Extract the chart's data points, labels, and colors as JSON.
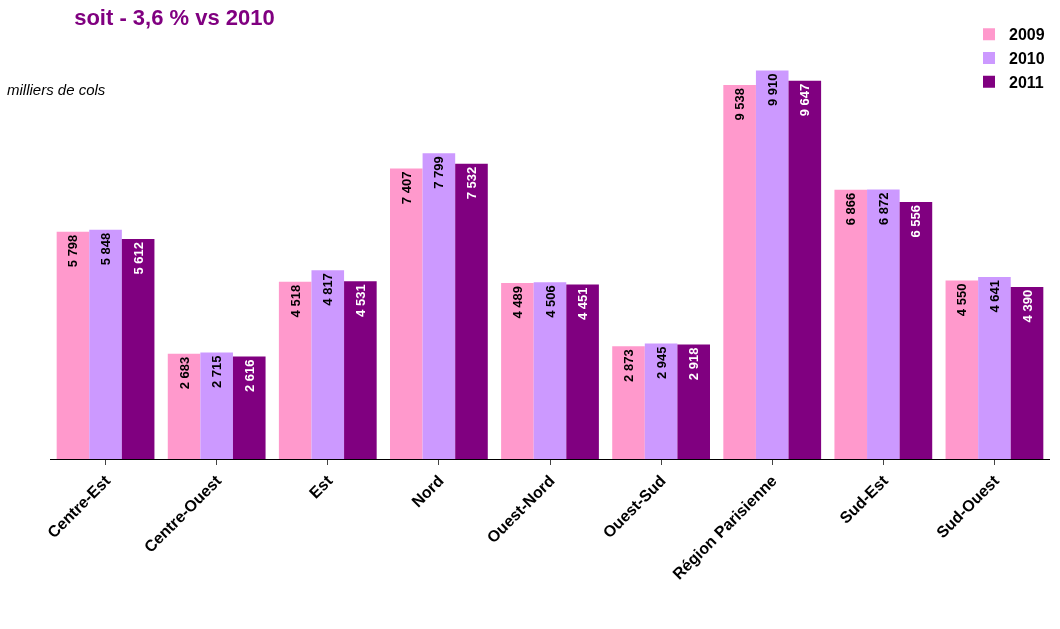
{
  "chart_data": {
    "type": "bar",
    "title": "soit - 3,6 % vs 2010",
    "ylabel": "milliers de cols",
    "categories": [
      "Centre-Est",
      "Centre-Ouest",
      "Est",
      "Nord",
      "Ouest-Nord",
      "Ouest-Sud",
      "Région Parisienne",
      "Sud-Est",
      "Sud-Ouest"
    ],
    "series": [
      {
        "name": "2009",
        "color": "#ff99cc",
        "values": [
          5798,
          2683,
          4518,
          7407,
          4489,
          2873,
          9538,
          6866,
          4550
        ],
        "value_labels": [
          "5 798",
          "2 683",
          "4 518",
          "7 407",
          "4 489",
          "2 873",
          "9 538",
          "6 866",
          "4 550"
        ]
      },
      {
        "name": "2010",
        "color": "#cc99ff",
        "values": [
          5848,
          2715,
          4817,
          7799,
          4506,
          2945,
          9910,
          6872,
          4641
        ],
        "value_labels": [
          "5 848",
          "2 715",
          "4 817",
          "7 799",
          "4 506",
          "2 945",
          "9 910",
          "6 872",
          "4 641"
        ]
      },
      {
        "name": "2011",
        "color": "#800080",
        "values": [
          5612,
          2616,
          4531,
          7532,
          4451,
          2918,
          9647,
          6556,
          4390
        ],
        "value_labels": [
          "5 612",
          "2 616",
          "4 531",
          "7 532",
          "4 451",
          "2 918",
          "9 647",
          "6 556",
          "4 390"
        ]
      }
    ],
    "legend": "top right"
  }
}
